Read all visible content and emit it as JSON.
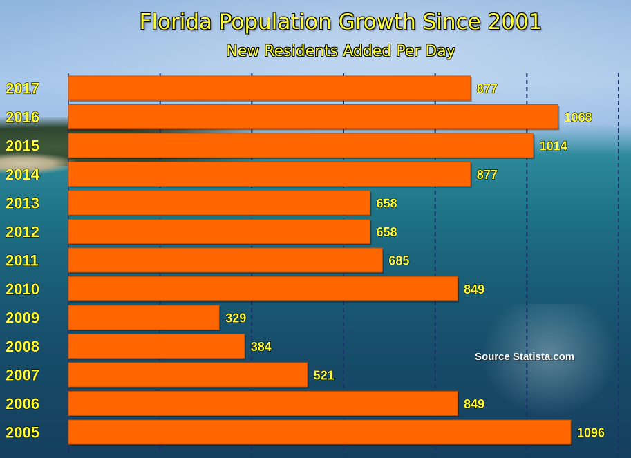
{
  "title": "Florida Population Growth Since 2001",
  "subtitle": "New Residents Added Per Day",
  "source": "Source Statista.com",
  "colors": {
    "bar": "#ff6600",
    "bar_edge": "#c94f00",
    "year_label": "#ffff33",
    "value_label": "#ffff33",
    "grid": "#1a2f6b"
  },
  "chart_data": {
    "type": "bar",
    "orientation": "horizontal",
    "title": "Florida Population Growth Since 2001",
    "subtitle": "New Residents Added Per Day",
    "categories": [
      "2017",
      "2016",
      "2015",
      "2014",
      "2013",
      "2012",
      "2011",
      "2010",
      "2009",
      "2008",
      "2007",
      "2006",
      "2005"
    ],
    "values": [
      877,
      1068,
      1014,
      877,
      658,
      658,
      685,
      849,
      329,
      384,
      521,
      849,
      1096
    ],
    "xlim": [
      0,
      1200
    ],
    "grid": true,
    "legend": false
  }
}
